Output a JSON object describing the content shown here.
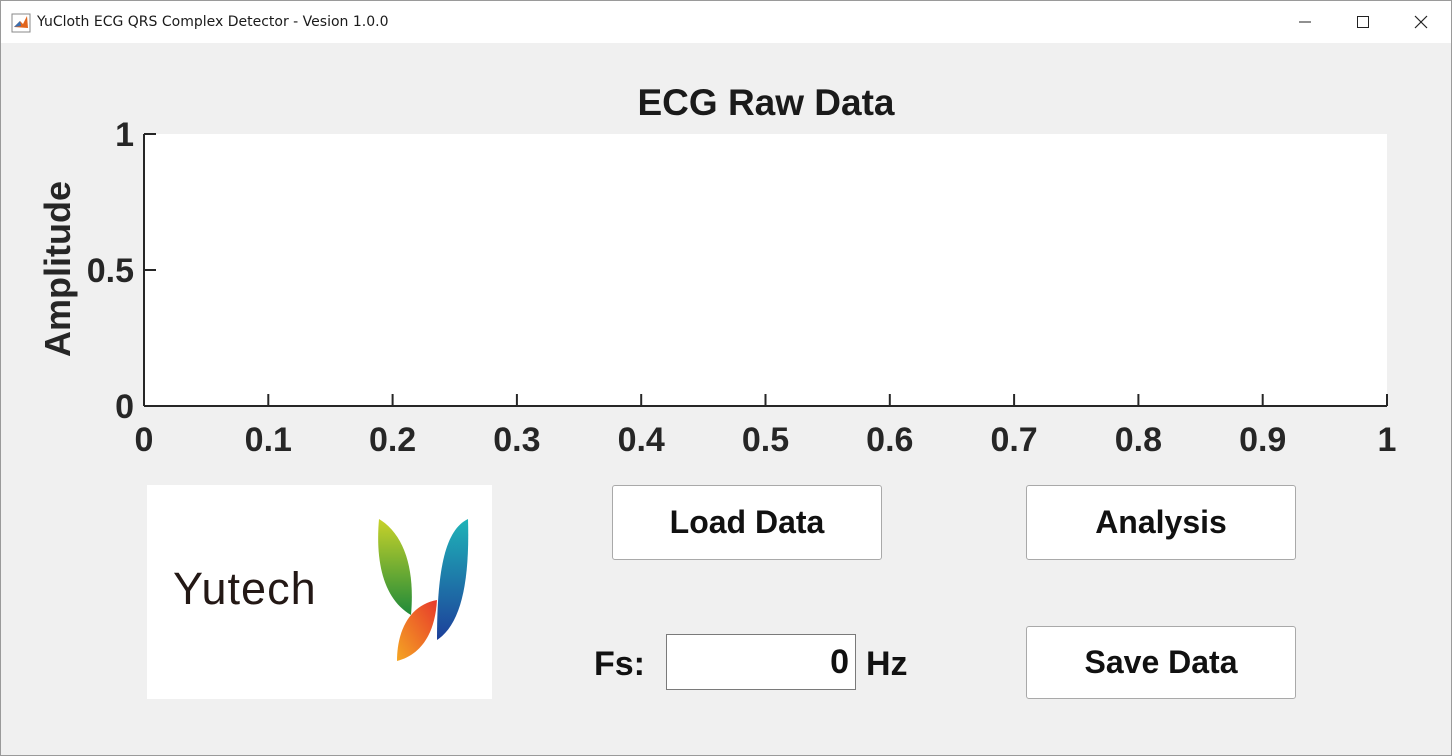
{
  "window": {
    "title": "YuCloth ECG QRS Complex Detector - Vesion 1.0.0",
    "icon": "matlab-icon",
    "controls": [
      "minimize-icon",
      "maximize-icon",
      "close-icon"
    ]
  },
  "chart_data": {
    "type": "line",
    "title": "ECG Raw Data",
    "xlabel": "",
    "ylabel": "Amplitude",
    "xlim": [
      0,
      1
    ],
    "ylim": [
      0,
      1
    ],
    "xticks": [
      "0",
      "0.1",
      "0.2",
      "0.3",
      "0.4",
      "0.5",
      "0.6",
      "0.7",
      "0.8",
      "0.9",
      "1"
    ],
    "yticks": [
      "0",
      "0.5",
      "1"
    ],
    "grid": false,
    "series": []
  },
  "logo": {
    "text": "Yutech"
  },
  "buttons": {
    "load": "Load Data",
    "analysis": "Analysis",
    "save": "Save Data"
  },
  "fs": {
    "label": "Fs:",
    "value": "0",
    "unit": "Hz"
  }
}
